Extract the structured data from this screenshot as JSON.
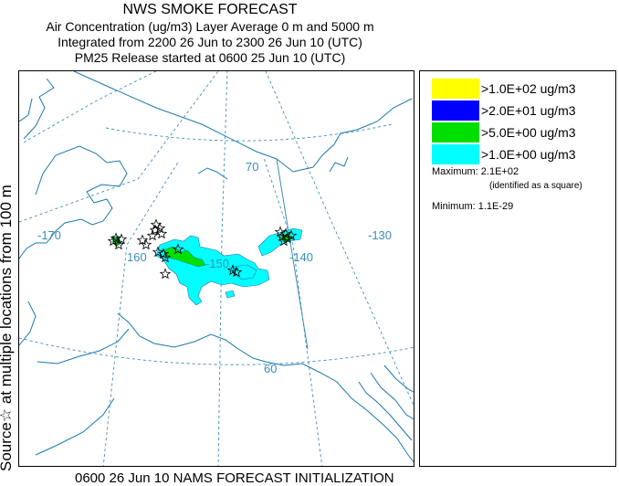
{
  "header": {
    "title": "NWS SMOKE FORECAST",
    "line2": "Air Concentration (ug/m3) Layer Average    0 m and  5000 m",
    "line3": "Integrated from 2200 26 Jun to 2300 26 Jun 10 (UTC)",
    "line4": "PM25 Release started at 0600 25 Jun 10 (UTC)"
  },
  "side_label": "Source☆ at multiple locations   from   100 m",
  "bottom_label": "0600 26 Jun 10 NAMS FORECAST INITIALIZATION",
  "legend": {
    "items": [
      {
        "label": ">1.0E+02 ug/m3",
        "color": "#ffff00"
      },
      {
        "label": ">2.0E+01 ug/m3",
        "color": "#0000ff"
      },
      {
        "label": ">5.0E+00 ug/m3",
        "color": "#00e000"
      },
      {
        "label": ">1.0E+00 ug/m3",
        "color": "#00ffff"
      }
    ],
    "maximum": "Maximum: 2.1E+02",
    "maximum_note": "(identified as a square)",
    "minimum": "Minimum: 1.1E-29"
  },
  "map": {
    "grid_labels": {
      "lat70": "70",
      "lat60": "60",
      "lon170": "-170",
      "lon160": "160",
      "lon150": "-150",
      "lon140": "-140",
      "lon130": "-130"
    },
    "colors": {
      "coast": "#1a78b0",
      "grid": "#3b8fb8",
      "border": "#3b8fb8",
      "plume_low": "#00ffff",
      "plume_mid": "#00e000"
    },
    "source_marker": "star-icon"
  }
}
